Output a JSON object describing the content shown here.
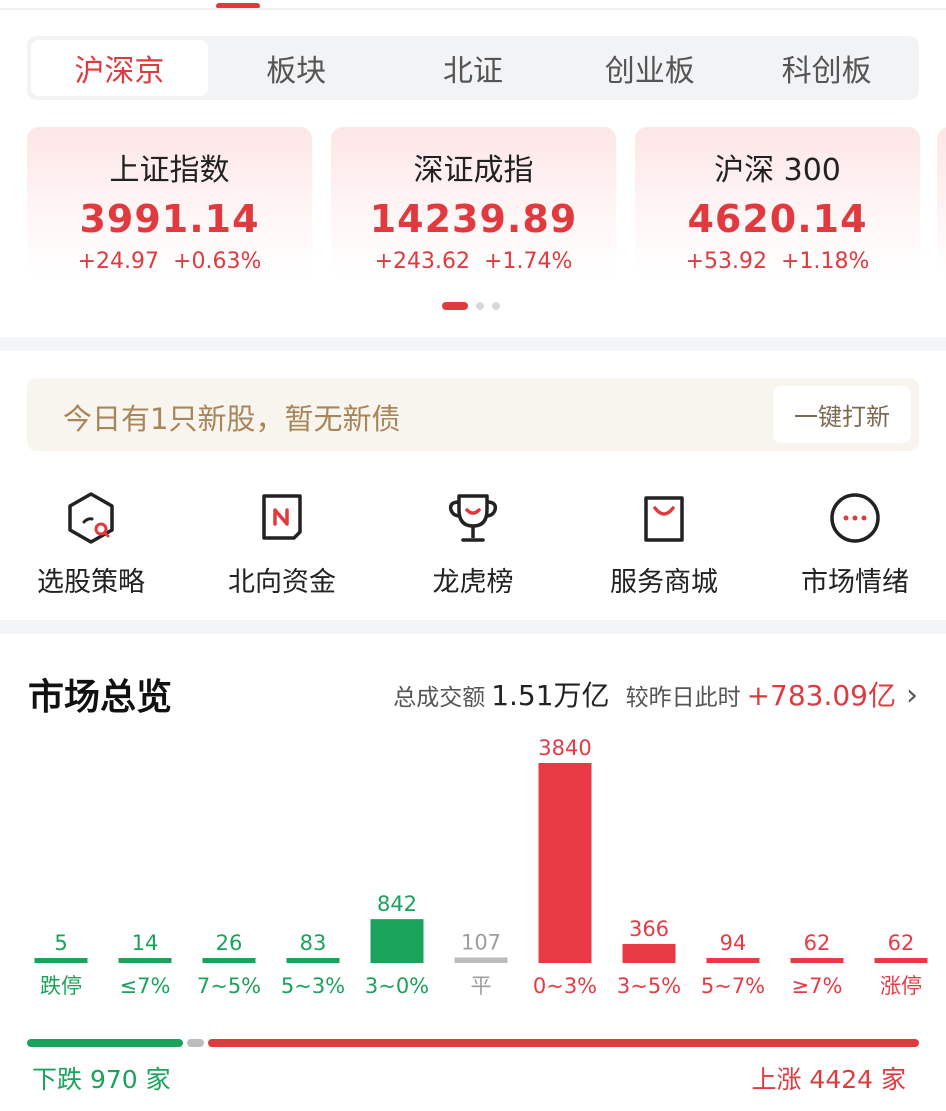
{
  "tabs": [
    {
      "label": "沪深京",
      "active": true
    },
    {
      "label": "板块",
      "active": false
    },
    {
      "label": "北证",
      "active": false
    },
    {
      "label": "创业板",
      "active": false
    },
    {
      "label": "科创板",
      "active": false
    }
  ],
  "indices": [
    {
      "name": "上证指数",
      "value": "3991.14",
      "change": "+24.97",
      "pct": "+0.63%"
    },
    {
      "name": "深证成指",
      "value": "14239.89",
      "change": "+243.62",
      "pct": "+1.74%"
    },
    {
      "name": "沪深 300",
      "value": "4620.14",
      "change": "+53.92",
      "pct": "+1.18%"
    }
  ],
  "banner": {
    "text": "今日有1只新股，暂无新债",
    "button": "一键打新"
  },
  "shortcuts": [
    {
      "label": "选股策略",
      "icon": "hexagon-search-icon"
    },
    {
      "label": "北向资金",
      "icon": "north-fund-icon"
    },
    {
      "label": "龙虎榜",
      "icon": "trophy-icon"
    },
    {
      "label": "服务商城",
      "icon": "shopping-bag-icon"
    },
    {
      "label": "市场情绪",
      "icon": "more-dots-icon"
    }
  ],
  "overview": {
    "title": "市场总览",
    "turnover_label": "总成交额",
    "turnover_value": "1.51万亿",
    "compare_label": "较昨日此时",
    "compare_value": "+783.09亿"
  },
  "chart_data": {
    "type": "bar",
    "categories": [
      "跌停",
      "≤7%",
      "7~5%",
      "5~3%",
      "3~0%",
      "平",
      "0~3%",
      "3~5%",
      "5~7%",
      "≥7%",
      "涨停"
    ],
    "values": [
      5,
      14,
      26,
      83,
      842,
      107,
      3840,
      366,
      94,
      62,
      62
    ],
    "colors": [
      "#1aa35b",
      "#1aa35b",
      "#1aa35b",
      "#1aa35b",
      "#1aa35b",
      "#bdbdbd",
      "#e83a45",
      "#e83a45",
      "#e83a45",
      "#e83a45",
      "#e83a45"
    ]
  },
  "breadth": {
    "down_label": "下跌 970 家",
    "up_label": "上涨 4424 家",
    "down": 970,
    "flat": 107,
    "up": 4424
  },
  "colors": {
    "up": "#e03a3f",
    "down": "#1aa35b",
    "flat": "#bdbdbd"
  }
}
